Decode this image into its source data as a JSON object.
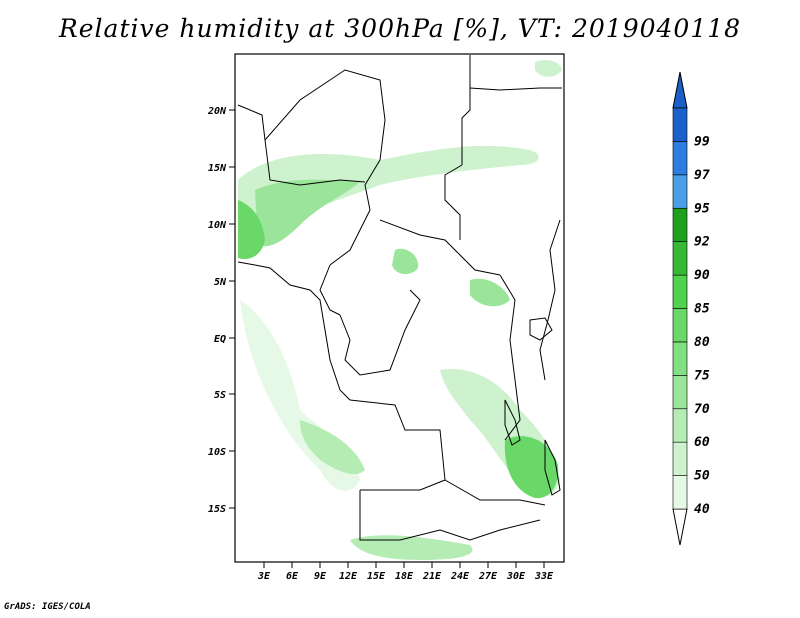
{
  "title": "Relative humidity at 300hPa [%], VT: 2019040118",
  "credit": "GrADS: IGES/COLA",
  "map": {
    "lat_ticks": [
      "20N",
      "15N",
      "10N",
      "5N",
      "EQ",
      "5S",
      "10S",
      "15S"
    ],
    "lon_ticks": [
      "3E",
      "6E",
      "9E",
      "12E",
      "15E",
      "18E",
      "21E",
      "24E",
      "27E",
      "30E",
      "33E"
    ],
    "lon_range": [
      0,
      35
    ],
    "lat_range": [
      -20,
      25
    ]
  },
  "colorbar": {
    "labels": [
      "40",
      "50",
      "60",
      "70",
      "75",
      "80",
      "85",
      "90",
      "92",
      "95",
      "97",
      "99"
    ],
    "colors": [
      "#e6f9e6",
      "#cdf2cd",
      "#b4ecb4",
      "#9be59b",
      "#82df82",
      "#69d869",
      "#50d250",
      "#37b837",
      "#1e9f1e",
      "#4a9ee8",
      "#2e7ee0",
      "#1b5fc8"
    ]
  }
}
